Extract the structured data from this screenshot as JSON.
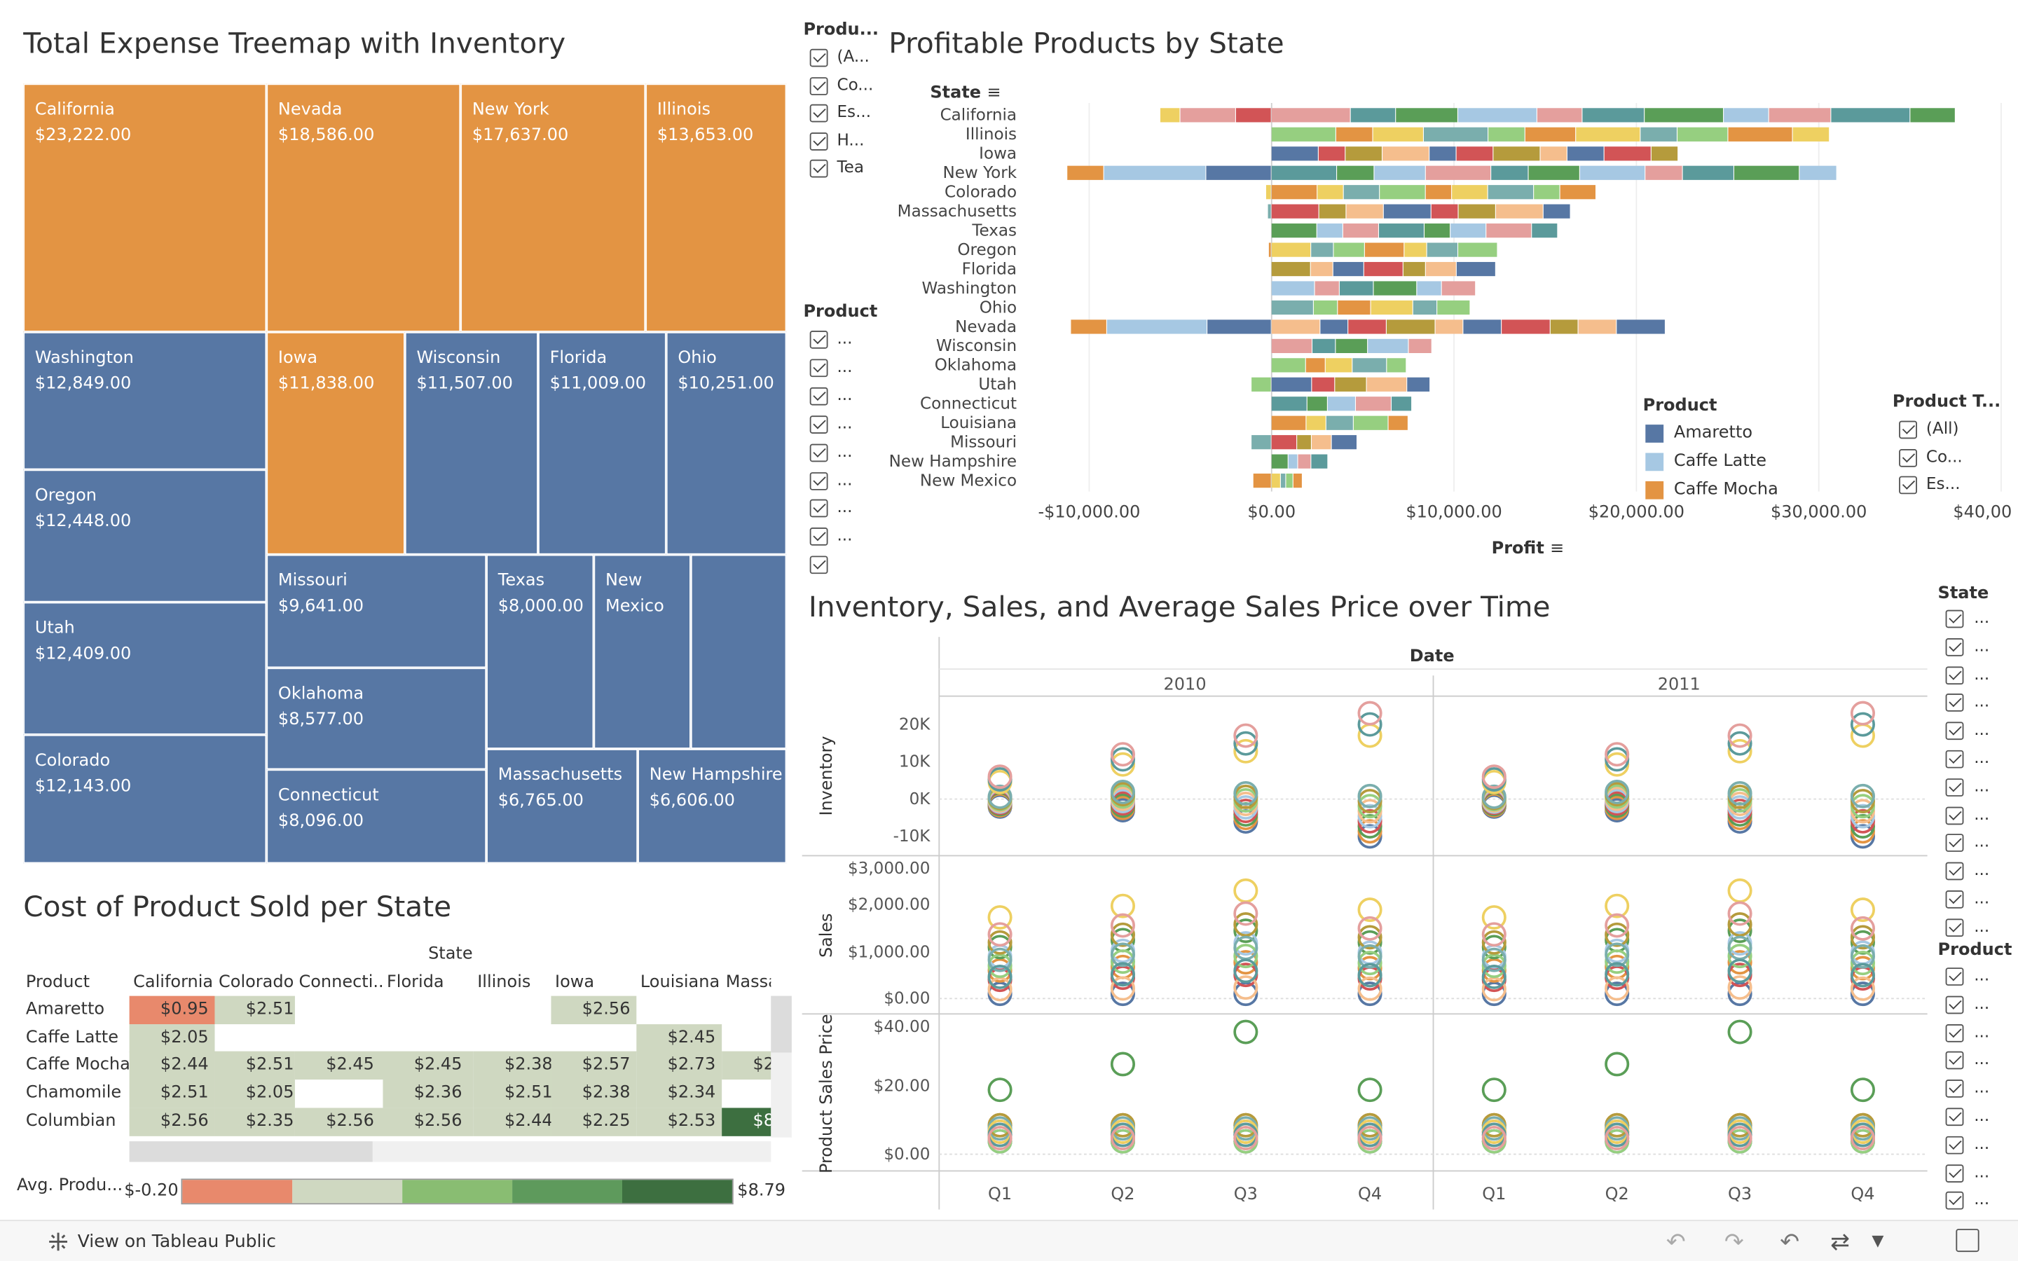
{
  "treemap": {
    "title": "Total Expense Treemap with Inventory",
    "cells": [
      {
        "state": "California",
        "value": "$23,222.00",
        "color": "orange"
      },
      {
        "state": "Nevada",
        "value": "$18,586.00",
        "color": "orange"
      },
      {
        "state": "New York",
        "value": "$17,637.00",
        "color": "orange"
      },
      {
        "state": "Illinois",
        "value": "$13,653.00",
        "color": "orange"
      },
      {
        "state": "Washington",
        "value": "$12,849.00",
        "color": "blue"
      },
      {
        "state": "Iowa",
        "value": "$11,838.00",
        "color": "orange"
      },
      {
        "state": "Wisconsin",
        "value": "$11,507.00",
        "color": "blue"
      },
      {
        "state": "Florida",
        "value": "$11,009.00",
        "color": "blue"
      },
      {
        "state": "Ohio",
        "value": "$10,251.00",
        "color": "blue"
      },
      {
        "state": "Oregon",
        "value": "$12,448.00",
        "color": "blue"
      },
      {
        "state": "Utah",
        "value": "$12,409.00",
        "color": "blue"
      },
      {
        "state": "Colorado",
        "value": "$12,143.00",
        "color": "blue"
      },
      {
        "state": "Missouri",
        "value": "$9,641.00",
        "color": "blue"
      },
      {
        "state": "Oklahoma",
        "value": "$8,577.00",
        "color": "blue"
      },
      {
        "state": "Connecticut",
        "value": "$8,096.00",
        "color": "blue"
      },
      {
        "state": "Texas",
        "value": "$8,000.00",
        "color": "blue"
      },
      {
        "state": "New Mexico",
        "value": "",
        "color": "blue"
      },
      {
        "state": "",
        "value": "",
        "color": "blue"
      },
      {
        "state": "Massachusetts",
        "value": "$6,765.00",
        "color": "blue"
      },
      {
        "state": "New Hampshire",
        "value": "$6,606.00",
        "color": "blue"
      }
    ],
    "label_lines": {
      "new_mexico_1": "New",
      "new_mexico_2": "Mexico"
    }
  },
  "filters": {
    "product_type_top": {
      "title": "Produ...",
      "items": [
        "(A...",
        "Co...",
        "Es...",
        "H...",
        "Tea"
      ]
    },
    "product_mid": {
      "title": "Product",
      "items": [
        "...",
        "...",
        "...",
        "...",
        "...",
        "...",
        "...",
        "...",
        ""
      ]
    },
    "product_type_right": {
      "title": "Product T...",
      "items": [
        "(All)",
        "Co...",
        "Es..."
      ]
    },
    "state_right": {
      "title": "State",
      "items": [
        "...",
        "...",
        "...",
        "...",
        "...",
        "...",
        "...",
        "...",
        "...",
        "...",
        "...",
        "..."
      ]
    },
    "product_right": {
      "title": "Product",
      "items": [
        "...",
        "...",
        "...",
        "...",
        "...",
        "...",
        "...",
        "...",
        "..."
      ]
    }
  },
  "profit_chart": {
    "title": "Profitable Products by State",
    "state_header": "State",
    "x_title": "Profit",
    "x_ticks": [
      "-$10,000.00",
      "$0.00",
      "$10,000.00",
      "$20,000.00",
      "$30,000.00",
      "$40,000.00"
    ],
    "legend": {
      "title": "Product",
      "items": [
        {
          "name": "Amaretto",
          "color": "#5777a4"
        },
        {
          "name": "Caffe Latte",
          "color": "#a6c8e3"
        },
        {
          "name": "Caffe Mocha",
          "color": "#e39443"
        }
      ]
    }
  },
  "chart_data": [
    {
      "type": "bar",
      "title": "Profitable Products by State",
      "orientation": "horizontal-stacked",
      "categories": [
        "California",
        "Illinois",
        "Iowa",
        "New York",
        "Colorado",
        "Massachusetts",
        "Texas",
        "Oregon",
        "Florida",
        "Washington",
        "Ohio",
        "Nevada",
        "Wisconsin",
        "Oklahoma",
        "Utah",
        "Connecticut",
        "Louisiana",
        "Missouri",
        "New Hampshire",
        "New Mexico"
      ],
      "xlabel": "Profit",
      "ylabel": "State",
      "xlim": [
        -11000,
        40000
      ],
      "stack_extent": [
        [
          -6100,
          37500
        ],
        [
          0,
          30600
        ],
        [
          0,
          22300
        ],
        [
          -11200,
          31000
        ],
        [
          -300,
          17800
        ],
        [
          -200,
          16400
        ],
        [
          0,
          15700
        ],
        [
          -150,
          12400
        ],
        [
          0,
          12300
        ],
        [
          0,
          11200
        ],
        [
          0,
          10900
        ],
        [
          -11000,
          21600
        ],
        [
          0,
          8800
        ],
        [
          0,
          7400
        ],
        [
          -1100,
          8700
        ],
        [
          0,
          7700
        ],
        [
          0,
          7500
        ],
        [
          -1100,
          4700
        ],
        [
          0,
          3100
        ],
        [
          -1000,
          1700
        ]
      ]
    },
    {
      "type": "scatter",
      "title": "Inventory, Sales, and Average Sales Price over Time",
      "x": [
        "2010 Q1",
        "2010 Q2",
        "2010 Q3",
        "2010 Q4",
        "2011 Q1",
        "2011 Q2",
        "2011 Q3",
        "2011 Q4"
      ],
      "panels": [
        {
          "name": "Inventory",
          "yticks": [
            "20K",
            "10K",
            "0K",
            "-10K"
          ],
          "ylim": [
            -12000,
            24000
          ]
        },
        {
          "name": "Sales",
          "yticks": [
            "$3,000.00",
            "$2,000.00",
            "$1,000.00",
            "$0.00"
          ],
          "ylim": [
            0,
            3200
          ]
        },
        {
          "name": "Product Sales Price",
          "yticks": [
            "$40.00",
            "$20.00",
            "$0.00"
          ],
          "ylim": [
            -2,
            44
          ]
        }
      ]
    }
  ],
  "timeseries": {
    "title": "Inventory, Sales, and Average Sales Price over Time",
    "date_header": "Date",
    "years": [
      "2010",
      "2011"
    ],
    "quarters": [
      "Q1",
      "Q2",
      "Q3",
      "Q4",
      "Q1",
      "Q2",
      "Q3",
      "Q4"
    ],
    "panels": [
      {
        "label": "Inventory",
        "ticks": [
          "20K",
          "10K",
          "0K",
          "-10K"
        ]
      },
      {
        "label": "Sales",
        "ticks": [
          "$3,000.00",
          "$2,000.00",
          "$1,000.00",
          "$0.00"
        ]
      },
      {
        "label": "Product Sales Price",
        "ticks": [
          "$40.00",
          "$20.00",
          "$0.00"
        ]
      }
    ]
  },
  "crosstab": {
    "title": "Cost of Product Sold per State",
    "state_header": "State",
    "row_header": "Product",
    "columns": [
      "California",
      "Colorado",
      "Connecti..",
      "Florida",
      "Illinois",
      "Iowa",
      "Louisiana",
      "Massa"
    ],
    "rows": [
      {
        "product": "Amaretto",
        "cells": [
          "$0.95",
          "$2.51",
          "",
          "",
          "",
          "$2.56",
          "",
          ""
        ]
      },
      {
        "product": "Caffe Latte",
        "cells": [
          "$2.05",
          "",
          "",
          "",
          "",
          "",
          "$2.45",
          ""
        ]
      },
      {
        "product": "Caffe Mocha",
        "cells": [
          "$2.44",
          "$2.51",
          "$2.45",
          "$2.45",
          "$2.38",
          "$2.57",
          "$2.73",
          "$2"
        ]
      },
      {
        "product": "Chamomile",
        "cells": [
          "$2.51",
          "$2.05",
          "",
          "$2.36",
          "$2.51",
          "$2.38",
          "$2.34",
          ""
        ]
      },
      {
        "product": "Columbian",
        "cells": [
          "$2.56",
          "$2.35",
          "$2.56",
          "$2.56",
          "$2.44",
          "$2.25",
          "$2.53",
          "$8"
        ]
      }
    ],
    "legend": {
      "title": "Avg. Produ...",
      "min": "$-0.20",
      "max": "$8.79"
    }
  },
  "footer": {
    "view_label": "View on Tableau Public"
  }
}
